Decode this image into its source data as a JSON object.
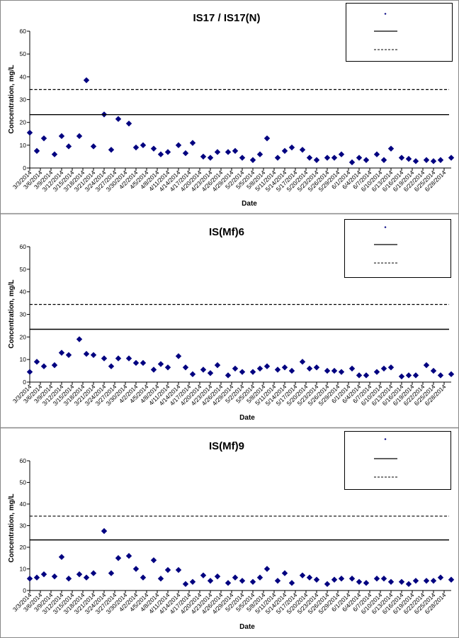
{
  "chart_data": [
    {
      "type": "scatter",
      "title": "IS17 / IS17(N)",
      "xlabel": "Date",
      "ylabel": "Concentration, mg/L",
      "ylim": [
        0,
        60
      ],
      "yticks": [
        0,
        10,
        20,
        30,
        40,
        50,
        60
      ],
      "xlim": [
        "3/3/2014",
        "6/30/2014"
      ],
      "xticks": [
        "3/3/2014",
        "3/6/2014",
        "3/9/2014",
        "3/12/2014",
        "3/15/2014",
        "3/18/2014",
        "3/21/2014",
        "3/24/2014",
        "3/27/2014",
        "3/30/2014",
        "4/2/2014",
        "4/5/2014",
        "4/8/2014",
        "4/11/2014",
        "4/14/2014",
        "4/17/2014",
        "4/20/2014",
        "4/23/2014",
        "4/26/2014",
        "4/29/2014",
        "5/2/2014",
        "5/5/2014",
        "5/8/2014",
        "5/11/2014",
        "5/14/2014",
        "5/17/2014",
        "5/20/2014",
        "5/23/2014",
        "5/26/2014",
        "5/29/2014",
        "6/1/2014",
        "6/4/2014",
        "6/7/2014",
        "6/10/2014",
        "6/13/2014",
        "6/16/2014",
        "6/19/2014",
        "6/22/2014",
        "6/25/2014",
        "6/28/2014"
      ],
      "grid": false,
      "legend_position": "top-right",
      "series": [
        {
          "kind": "markers",
          "color": "#000080",
          "marker": "diamond",
          "x": [
            "3/3/2014",
            "3/5/2014",
            "3/7/2014",
            "3/10/2014",
            "3/12/2014",
            "3/14/2014",
            "3/17/2014",
            "3/19/2014",
            "3/21/2014",
            "3/24/2014",
            "3/26/2014",
            "3/28/2014",
            "3/31/2014",
            "4/2/2014",
            "4/4/2014",
            "4/7/2014",
            "4/9/2014",
            "4/11/2014",
            "4/14/2014",
            "4/16/2014",
            "4/18/2014",
            "4/21/2014",
            "4/23/2014",
            "4/25/2014",
            "4/28/2014",
            "4/30/2014",
            "5/2/2014",
            "5/5/2014",
            "5/7/2014",
            "5/9/2014",
            "5/12/2014",
            "5/14/2014",
            "5/16/2014",
            "5/19/2014",
            "5/21/2014",
            "5/23/2014",
            "5/26/2014",
            "5/28/2014",
            "5/30/2014",
            "6/2/2014",
            "6/4/2014",
            "6/6/2014",
            "6/9/2014",
            "6/11/2014",
            "6/13/2014",
            "6/16/2014",
            "6/18/2014",
            "6/20/2014",
            "6/23/2014",
            "6/25/2014",
            "6/27/2014",
            "6/30/2014"
          ],
          "y": [
            15.5,
            7.5,
            13.0,
            6.0,
            14.0,
            9.5,
            14.0,
            38.5,
            9.5,
            23.5,
            8.0,
            21.5,
            19.5,
            9.0,
            10.0,
            8.5,
            6.0,
            7.0,
            10.0,
            6.5,
            11.0,
            5.0,
            4.5,
            7.0,
            7.0,
            7.5,
            4.5,
            3.5,
            6.0,
            13.0,
            4.5,
            7.5,
            9.0,
            8.0,
            4.5,
            3.5,
            4.5,
            4.5,
            6.0,
            2.5,
            4.5,
            3.5,
            6.0,
            3.5,
            8.5,
            4.5,
            4.0,
            3.0,
            3.5,
            3.0,
            3.5,
            4.5
          ]
        },
        {
          "kind": "hline",
          "y": 23.4,
          "style": "solid",
          "color": "#000000"
        },
        {
          "kind": "hline",
          "y": 34.4,
          "style": "dashed",
          "color": "#000000"
        }
      ]
    },
    {
      "type": "scatter",
      "title": "IS(Mf)6",
      "xlabel": "Date",
      "ylabel": "Concentration, mg/L",
      "ylim": [
        0,
        60
      ],
      "yticks": [
        0,
        10,
        20,
        30,
        40,
        50,
        60
      ],
      "xlim": [
        "3/3/2014",
        "6/30/2014"
      ],
      "xticks": [
        "3/3/2014",
        "3/6/2014",
        "3/9/2014",
        "3/12/2014",
        "3/15/2014",
        "3/18/2014",
        "3/21/2014",
        "3/24/2014",
        "3/27/2014",
        "3/30/2014",
        "4/2/2014",
        "4/5/2014",
        "4/8/2014",
        "4/11/2014",
        "4/14/2014",
        "4/17/2014",
        "4/20/2014",
        "4/23/2014",
        "4/26/2014",
        "4/29/2014",
        "5/2/2014",
        "5/5/2014",
        "5/8/2014",
        "5/11/2014",
        "5/14/2014",
        "5/17/2014",
        "5/20/2014",
        "5/23/2014",
        "5/26/2014",
        "5/29/2014",
        "6/1/2014",
        "6/4/2014",
        "6/7/2014",
        "6/10/2014",
        "6/13/2014",
        "6/16/2014",
        "6/19/2014",
        "6/22/2014",
        "6/25/2014",
        "6/28/2014"
      ],
      "grid": false,
      "legend_position": "top-right",
      "series": [
        {
          "kind": "markers",
          "color": "#000080",
          "marker": "diamond",
          "x": [
            "3/3/2014",
            "3/5/2014",
            "3/7/2014",
            "3/10/2014",
            "3/12/2014",
            "3/14/2014",
            "3/17/2014",
            "3/19/2014",
            "3/21/2014",
            "3/24/2014",
            "3/26/2014",
            "3/28/2014",
            "3/31/2014",
            "4/2/2014",
            "4/4/2014",
            "4/7/2014",
            "4/9/2014",
            "4/11/2014",
            "4/14/2014",
            "4/16/2014",
            "4/18/2014",
            "4/21/2014",
            "4/23/2014",
            "4/25/2014",
            "4/28/2014",
            "4/30/2014",
            "5/2/2014",
            "5/5/2014",
            "5/7/2014",
            "5/9/2014",
            "5/12/2014",
            "5/14/2014",
            "5/16/2014",
            "5/19/2014",
            "5/21/2014",
            "5/23/2014",
            "5/26/2014",
            "5/28/2014",
            "5/30/2014",
            "6/2/2014",
            "6/4/2014",
            "6/6/2014",
            "6/9/2014",
            "6/11/2014",
            "6/13/2014",
            "6/16/2014",
            "6/18/2014",
            "6/20/2014",
            "6/23/2014",
            "6/25/2014",
            "6/27/2014",
            "6/30/2014"
          ],
          "y": [
            4.5,
            9.0,
            7.0,
            7.5,
            13.0,
            12.0,
            19.0,
            12.5,
            12.0,
            10.5,
            7.0,
            10.5,
            10.5,
            8.5,
            8.5,
            5.5,
            8.0,
            6.5,
            11.5,
            6.5,
            3.5,
            5.5,
            4.0,
            7.5,
            3.0,
            6.0,
            4.5,
            4.5,
            6.0,
            7.0,
            5.5,
            6.5,
            5.0,
            9.0,
            6.0,
            6.5,
            5.0,
            5.0,
            4.5,
            6.0,
            3.0,
            3.0,
            4.5,
            6.0,
            6.5,
            2.5,
            3.0,
            3.0,
            7.5,
            5.0,
            3.0,
            3.5
          ]
        },
        {
          "kind": "hline",
          "y": 23.4,
          "style": "solid",
          "color": "#000000"
        },
        {
          "kind": "hline",
          "y": 34.4,
          "style": "dashed",
          "color": "#000000"
        }
      ]
    },
    {
      "type": "scatter",
      "title": "IS(Mf)9",
      "xlabel": "Date",
      "ylabel": "Concentration, mg/L",
      "ylim": [
        0,
        60
      ],
      "yticks": [
        0,
        10,
        20,
        30,
        40,
        50,
        60
      ],
      "xlim": [
        "3/3/2014",
        "6/30/2014"
      ],
      "xticks": [
        "3/3/2014",
        "3/6/2014",
        "3/9/2014",
        "3/12/2014",
        "3/15/2014",
        "3/18/2014",
        "3/21/2014",
        "3/24/2014",
        "3/27/2014",
        "3/30/2014",
        "4/2/2014",
        "4/5/2014",
        "4/8/2014",
        "4/11/2014",
        "4/14/2014",
        "4/17/2014",
        "4/20/2014",
        "4/23/2014",
        "4/26/2014",
        "4/29/2014",
        "5/2/2014",
        "5/5/2014",
        "5/8/2014",
        "5/11/2014",
        "5/14/2014",
        "5/17/2014",
        "5/20/2014",
        "5/23/2014",
        "5/26/2014",
        "5/29/2014",
        "6/1/2014",
        "6/4/2014",
        "6/7/2014",
        "6/10/2014",
        "6/13/2014",
        "6/16/2014",
        "6/19/2014",
        "6/22/2014",
        "6/25/2014",
        "6/28/2014"
      ],
      "grid": false,
      "legend_position": "top-right",
      "series": [
        {
          "kind": "markers",
          "color": "#000080",
          "marker": "diamond",
          "x": [
            "3/3/2014",
            "3/5/2014",
            "3/7/2014",
            "3/10/2014",
            "3/12/2014",
            "3/14/2014",
            "3/17/2014",
            "3/19/2014",
            "3/21/2014",
            "3/24/2014",
            "3/26/2014",
            "3/28/2014",
            "3/31/2014",
            "4/2/2014",
            "4/4/2014",
            "4/7/2014",
            "4/9/2014",
            "4/11/2014",
            "4/14/2014",
            "4/16/2014",
            "4/18/2014",
            "4/21/2014",
            "4/23/2014",
            "4/25/2014",
            "4/28/2014",
            "4/30/2014",
            "5/2/2014",
            "5/5/2014",
            "5/7/2014",
            "5/9/2014",
            "5/12/2014",
            "5/14/2014",
            "5/16/2014",
            "5/19/2014",
            "5/21/2014",
            "5/23/2014",
            "5/26/2014",
            "5/28/2014",
            "5/30/2014",
            "6/2/2014",
            "6/4/2014",
            "6/6/2014",
            "6/9/2014",
            "6/11/2014",
            "6/13/2014",
            "6/16/2014",
            "6/18/2014",
            "6/20/2014",
            "6/23/2014",
            "6/25/2014",
            "6/27/2014",
            "6/30/2014"
          ],
          "y": [
            5.5,
            6.0,
            7.5,
            6.5,
            15.5,
            5.5,
            7.5,
            6.0,
            8.0,
            27.5,
            8.0,
            15.0,
            16.0,
            10.0,
            6.0,
            14.0,
            5.5,
            9.5,
            9.5,
            3.0,
            4.0,
            7.0,
            4.5,
            6.5,
            3.5,
            6.0,
            4.5,
            4.0,
            6.0,
            10.0,
            4.5,
            8.0,
            3.5,
            7.0,
            6.0,
            5.0,
            3.0,
            5.0,
            5.5,
            5.5,
            4.0,
            3.5,
            5.5,
            5.5,
            4.0,
            4.0,
            3.0,
            4.5,
            4.5,
            4.5,
            6.0,
            5.0
          ]
        },
        {
          "kind": "hline",
          "y": 23.4,
          "style": "solid",
          "color": "#000000"
        },
        {
          "kind": "hline",
          "y": 34.4,
          "style": "dashed",
          "color": "#000000"
        }
      ]
    }
  ]
}
